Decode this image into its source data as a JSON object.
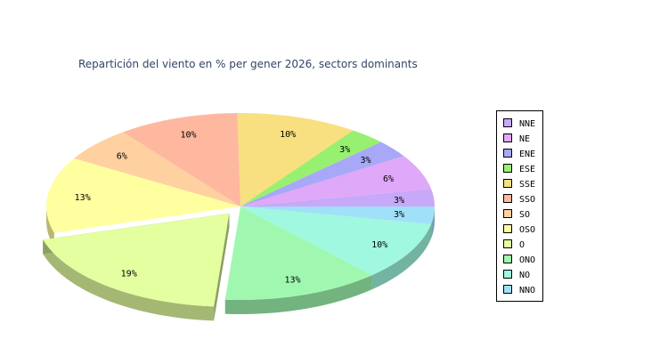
{
  "chart_data": {
    "type": "pie",
    "title": "Repartición del viento en % per gener 2026, sectors dominants",
    "labels": [
      "NNE",
      "NE",
      "ENE",
      "ESE",
      "SSE",
      "SSO",
      "SO",
      "OSO",
      "O",
      "ONO",
      "NO",
      "NNO"
    ],
    "values": [
      3,
      6,
      3,
      3,
      10,
      10,
      6,
      13,
      19,
      13,
      10,
      3
    ],
    "value_labels": [
      "3%",
      "6%",
      "3%",
      "3%",
      "10%",
      "10%",
      "6%",
      "13%",
      "19%",
      "13%",
      "10%",
      "3%"
    ],
    "colors": [
      "#c8a8f8",
      "#e0a8f8",
      "#a8a8f8",
      "#98f070",
      "#f8e080",
      "#ffb8a0",
      "#ffd0a0",
      "#ffffa0",
      "#e4ffa0",
      "#a0f8b0",
      "#a0f8e0",
      "#a0e0f8"
    ],
    "exploded": "O",
    "legend_position": "right",
    "style": "3d"
  }
}
